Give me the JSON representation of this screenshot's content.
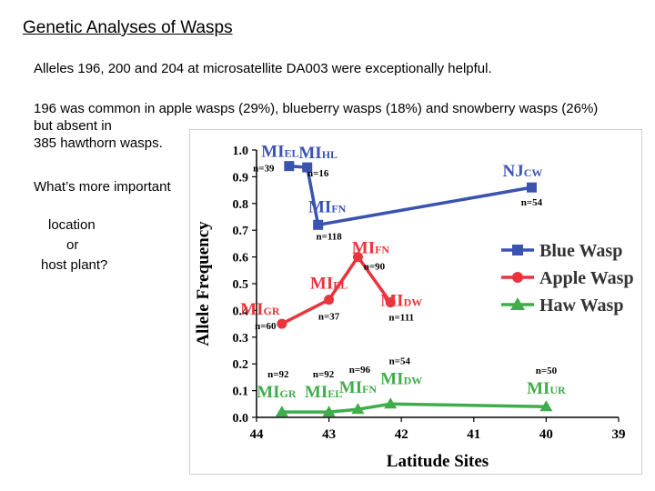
{
  "slide": {
    "title": "Genetic Analyses of Wasps",
    "para1": "Alleles 196, 200 and 204 at microsatellite DA003 were exceptionally helpful.",
    "para2_line1": "196 was common in apple wasps (29%), blueberry wasps (18%) and snowberry wasps (26%)",
    "para2_line2": "but absent in",
    "para2_line3": "385 hawthorn wasps.",
    "para3": "What’s more important",
    "question_line1": "location",
    "question_line2": "or",
    "question_line3": "host plant?"
  },
  "chart_data": {
    "type": "line",
    "xlabel": "Latitude Sites",
    "ylabel": "Allele Frequency",
    "x_ticks": [
      44,
      43,
      42,
      41,
      40,
      39
    ],
    "y_ticks": [
      0.0,
      0.1,
      0.2,
      0.3,
      0.4,
      0.5,
      0.6,
      0.7,
      0.8,
      0.9,
      1.0
    ],
    "xlim": [
      44,
      39
    ],
    "ylim": [
      0.0,
      1.0
    ],
    "legend_position": "right",
    "series": [
      {
        "name": "Blue Wasp",
        "color": "#3a53b0",
        "marker": "square",
        "points": [
          {
            "x": 43.55,
            "y": 0.94,
            "site": "MI",
            "sub": "EL",
            "n": "n=39"
          },
          {
            "x": 43.3,
            "y": 0.935,
            "site": "MI",
            "sub": "HL",
            "n": "n=16"
          },
          {
            "x": 43.15,
            "y": 0.72,
            "site": "MI",
            "sub": "FN",
            "n": "n=118"
          },
          {
            "x": 40.2,
            "y": 0.86,
            "site": "NJ",
            "sub": "CW",
            "n": "n=54"
          }
        ]
      },
      {
        "name": "Apple Wasp",
        "color": "#e8343b",
        "marker": "circle",
        "points": [
          {
            "x": 43.65,
            "y": 0.35,
            "site": "MI",
            "sub": "GR",
            "n": "n=60"
          },
          {
            "x": 43.0,
            "y": 0.44,
            "site": "MI",
            "sub": "EL",
            "n": "n=37"
          },
          {
            "x": 42.6,
            "y": 0.6,
            "site": "MI",
            "sub": "FN",
            "n": "n=90"
          },
          {
            "x": 42.15,
            "y": 0.43,
            "site": "MI",
            "sub": "DW",
            "n": "n=111"
          }
        ]
      },
      {
        "name": "Haw Wasp",
        "color": "#3fad4a",
        "marker": "triangle",
        "points": [
          {
            "x": 43.65,
            "y": 0.02,
            "site": "MI",
            "sub": "GR",
            "n": "n=92"
          },
          {
            "x": 43.0,
            "y": 0.02,
            "site": "MI",
            "sub": "EL",
            "n": "n=92"
          },
          {
            "x": 42.6,
            "y": 0.03,
            "site": "MI",
            "sub": "FN",
            "n": "n=96"
          },
          {
            "x": 42.15,
            "y": 0.05,
            "site": "MI",
            "sub": "DW",
            "n": "n=54"
          },
          {
            "x": 40.0,
            "y": 0.04,
            "site": "MI",
            "sub": "UR",
            "n": "n=50"
          }
        ]
      }
    ]
  }
}
